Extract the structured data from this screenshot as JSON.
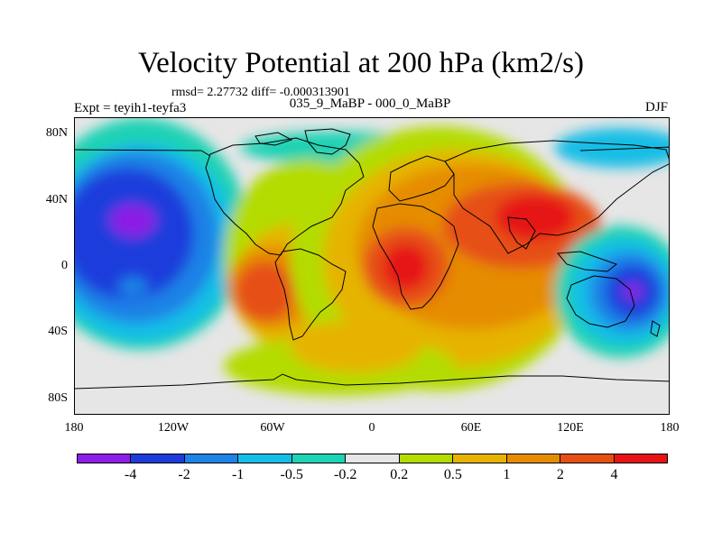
{
  "title": "Velocity Potential at 200 hPa (km2/s)",
  "stats": "rmsd= 2.27732 diff= -0.000313901",
  "expt": "Expt = teyih1-teyfa3",
  "subtitle": "035_9_MaBP - 000_0_MaBP",
  "season": "DJF",
  "chart_data": {
    "type": "heatmap",
    "variable": "Velocity Potential at 200 hPa",
    "units": "km2/s",
    "lon_range": [
      -180,
      180
    ],
    "lat_range": [
      -90,
      90
    ],
    "x_ticks": [
      {
        "value": -180,
        "label": "180"
      },
      {
        "value": -120,
        "label": "120W"
      },
      {
        "value": -60,
        "label": "60W"
      },
      {
        "value": 0,
        "label": "0"
      },
      {
        "value": 60,
        "label": "60E"
      },
      {
        "value": 120,
        "label": "120E"
      },
      {
        "value": 180,
        "label": "180"
      }
    ],
    "y_ticks": [
      {
        "value": 80,
        "label": "80N"
      },
      {
        "value": 40,
        "label": "40N"
      },
      {
        "value": 0,
        "label": "0"
      },
      {
        "value": -40,
        "label": "40S"
      },
      {
        "value": -80,
        "label": "80S"
      }
    ],
    "contour_levels": [
      -4,
      -2,
      -1,
      -0.5,
      -0.2,
      0.2,
      0.5,
      1,
      2,
      4
    ],
    "colorbar": {
      "labels": [
        "-4",
        "-2",
        "-1",
        "-0.5",
        "-0.2",
        "0.2",
        "0.5",
        "1",
        "2",
        "4"
      ],
      "colors": [
        "#8c1ee6",
        "#1e3cdc",
        "#1e82e6",
        "#14bee6",
        "#1ed2b4",
        "#e6e6e6",
        "#b4dc00",
        "#e6b400",
        "#e68c00",
        "#e65014",
        "#e61414"
      ]
    },
    "centers": [
      {
        "lon": -145,
        "lat": 30,
        "value": -4,
        "sign": "negative"
      },
      {
        "lon": -145,
        "lat": -12,
        "value": -2,
        "sign": "negative"
      },
      {
        "lon": 155,
        "lat": -15,
        "value": -4,
        "sign": "negative"
      },
      {
        "lon": 20,
        "lat": 0,
        "value": 4,
        "sign": "positive"
      },
      {
        "lon": 95,
        "lat": 30,
        "value": 4,
        "sign": "positive"
      },
      {
        "lon": -65,
        "lat": -15,
        "value": 2,
        "sign": "positive"
      }
    ]
  }
}
